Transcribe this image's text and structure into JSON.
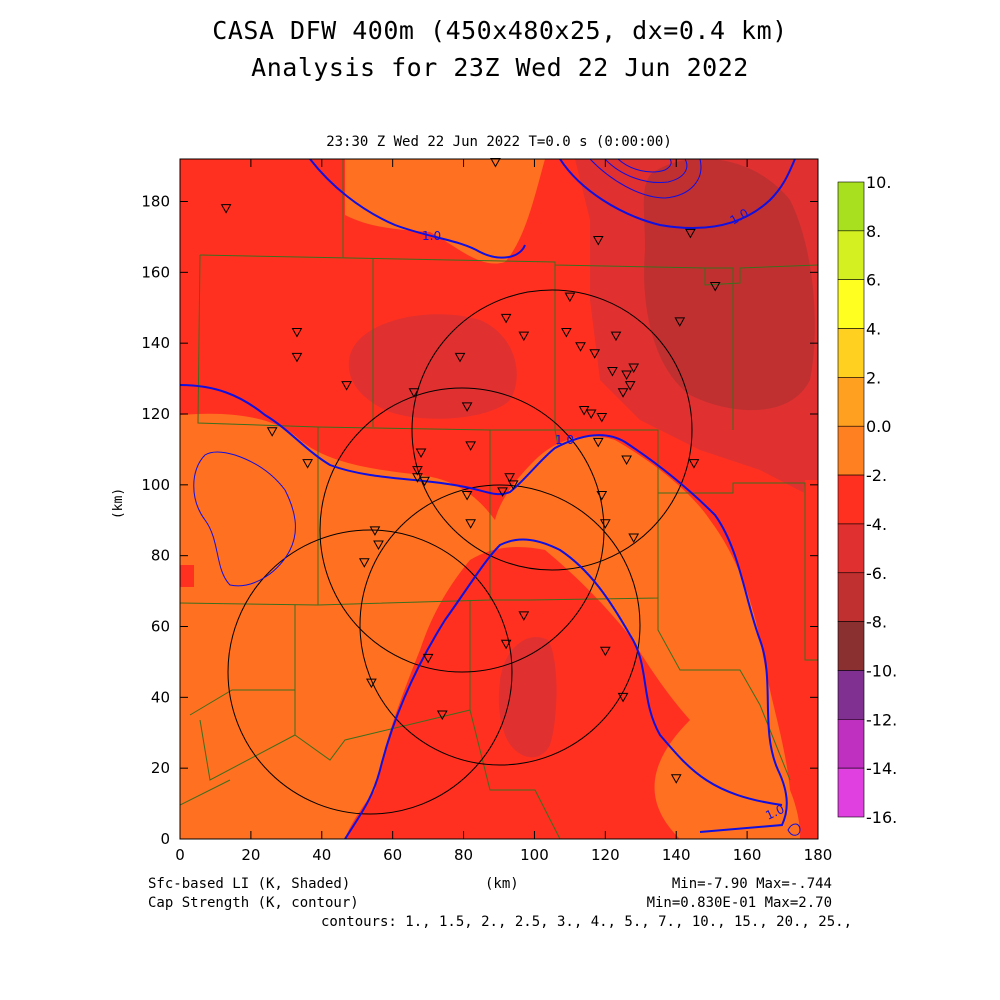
{
  "header": {
    "title_line1": "CASA DFW 400m (450x480x25, dx=0.4 km)",
    "title_line2": "Analysis for 23Z Wed 22 Jun 2022",
    "valid_time": "23:30 Z Wed 22 Jun 2022    T=0.0 s (0:00:00)"
  },
  "axes": {
    "x_label": "(km)",
    "y_label": "(km)",
    "x_ticks": [
      "0",
      "20",
      "40",
      "60",
      "80",
      "100",
      "120",
      "140",
      "160",
      "180"
    ],
    "y_ticks": [
      "0",
      "20",
      "40",
      "60",
      "80",
      "100",
      "120",
      "140",
      "160",
      "180"
    ],
    "x_range_km": [
      0,
      180
    ],
    "y_range_km": [
      0,
      192
    ]
  },
  "colorbar": {
    "labels": [
      "10.",
      "8.",
      "6.",
      "4.",
      "2.",
      "0.0",
      "-2.",
      "-4.",
      "-6.",
      "-8.",
      "-10.",
      "-12.",
      "-14.",
      "-16."
    ],
    "colors": [
      "#a8e020",
      "#d4f020",
      "#ffff20",
      "#ffd020",
      "#ffa020",
      "#ff8020",
      "#ff3020",
      "#e03030",
      "#c03030",
      "#8a3030",
      "#803090",
      "#c030c0",
      "#e040e0"
    ]
  },
  "contour_labels": [
    "1.0",
    "1.0",
    "1.0",
    "1.0"
  ],
  "footer": {
    "left1": "Sfc-based LI (K, Shaded)",
    "left2": "Cap Strength (K, contour)",
    "center": "(km)",
    "right1": "Min=-7.90 Max=-.744",
    "right2": "Min=0.830E-01 Max=2.70",
    "right3": "contours: 1., 1.5, 2., 2.5, 3., 4., 5., 7., 10., 15., 20., 25.,"
  },
  "stations_km": [
    [
      13,
      178
    ],
    [
      33,
      143
    ],
    [
      33,
      136
    ],
    [
      47,
      128
    ],
    [
      26,
      115
    ],
    [
      36,
      106
    ],
    [
      55,
      87
    ],
    [
      56,
      83
    ],
    [
      52,
      78
    ],
    [
      79,
      136
    ],
    [
      81,
      122
    ],
    [
      82,
      111
    ],
    [
      66,
      126
    ],
    [
      68,
      109
    ],
    [
      67,
      104
    ],
    [
      67,
      102
    ],
    [
      69,
      101
    ],
    [
      81,
      97
    ],
    [
      82,
      89
    ],
    [
      91,
      98
    ],
    [
      93,
      102
    ],
    [
      94,
      100
    ],
    [
      92,
      147
    ],
    [
      97,
      142
    ],
    [
      110,
      153
    ],
    [
      109,
      143
    ],
    [
      113,
      139
    ],
    [
      117,
      137
    ],
    [
      114,
      121
    ],
    [
      116,
      120
    ],
    [
      119,
      119
    ],
    [
      123,
      142
    ],
    [
      122,
      132
    ],
    [
      126,
      131
    ],
    [
      128,
      133
    ],
    [
      127,
      128
    ],
    [
      125,
      126
    ],
    [
      118,
      112
    ],
    [
      126,
      107
    ],
    [
      145,
      106
    ],
    [
      141,
      146
    ],
    [
      151,
      156
    ],
    [
      144,
      171
    ],
    [
      118,
      169
    ],
    [
      89,
      191
    ],
    [
      119,
      97
    ],
    [
      120,
      89
    ],
    [
      128,
      85
    ],
    [
      97,
      63
    ],
    [
      92,
      55
    ],
    [
      70,
      51
    ],
    [
      54,
      44
    ],
    [
      74,
      35
    ],
    [
      120,
      53
    ],
    [
      125,
      40
    ],
    [
      140,
      17
    ]
  ]
}
